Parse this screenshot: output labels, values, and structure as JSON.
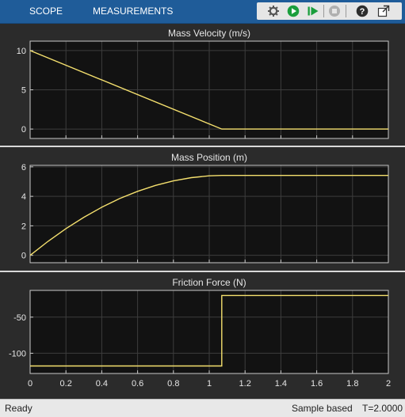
{
  "toolbar": {
    "tabs": [
      "SCOPE",
      "MEASUREMENTS"
    ],
    "tools": [
      "settings-icon",
      "run-icon",
      "step-forward-icon",
      "stop-icon",
      "help-icon",
      "undock-icon"
    ],
    "colors": {
      "background": "#1f5c99",
      "run": "#1a9e3c"
    }
  },
  "status": {
    "left": "Ready",
    "mode": "Sample based",
    "time": "T=2.0000"
  },
  "colors": {
    "plot_background": "#121212",
    "grid": "#3d3d3d",
    "axes": "#c8c8c8",
    "trace": "#f5e06e",
    "text": "#e6e6e6"
  },
  "chart_data": [
    {
      "type": "line",
      "title": "Mass Velocity (m/s)",
      "xlim": [
        0,
        2
      ],
      "ylim": [
        -1.2,
        11.2
      ],
      "yticks": [
        0,
        5,
        10
      ],
      "xticks": [
        0,
        0.2,
        0.4,
        0.6,
        0.8,
        1,
        1.2,
        1.4,
        1.6,
        1.8,
        2
      ],
      "show_xticklabels": false,
      "grid": true,
      "x": [
        0,
        1.07,
        2
      ],
      "y": [
        10,
        0,
        0
      ]
    },
    {
      "type": "line",
      "title": "Mass Position (m)",
      "xlim": [
        0,
        2
      ],
      "ylim": [
        -0.5,
        6.1
      ],
      "yticks": [
        0,
        2,
        4,
        6
      ],
      "xticks": [
        0,
        0.2,
        0.4,
        0.6,
        0.8,
        1,
        1.2,
        1.4,
        1.6,
        1.8,
        2
      ],
      "show_xticklabels": false,
      "grid": true,
      "x": [
        0,
        0.1,
        0.2,
        0.3,
        0.4,
        0.5,
        0.6,
        0.7,
        0.8,
        0.9,
        1.0,
        1.07,
        1.2,
        1.4,
        1.6,
        1.8,
        2.0
      ],
      "y": [
        0,
        0.95,
        1.81,
        2.58,
        3.26,
        3.85,
        4.34,
        4.74,
        5.05,
        5.27,
        5.39,
        5.42,
        5.42,
        5.42,
        5.42,
        5.42,
        5.42
      ]
    },
    {
      "type": "line",
      "title": "Friction Force (N)",
      "xlim": [
        0,
        2
      ],
      "ylim": [
        -128,
        -13
      ],
      "yticks": [
        -100,
        -50
      ],
      "xticks": [
        0,
        0.2,
        0.4,
        0.6,
        0.8,
        1,
        1.2,
        1.4,
        1.6,
        1.8,
        2
      ],
      "xticklabels": [
        "0",
        "0.2",
        "0.4",
        "0.6",
        "0.8",
        "1",
        "1.2",
        "1.4",
        "1.6",
        "1.8",
        "2"
      ],
      "show_xticklabels": true,
      "grid": true,
      "x": [
        0,
        1.07,
        1.07,
        2
      ],
      "y": [
        -117.6,
        -117.6,
        -20,
        -20
      ]
    }
  ]
}
